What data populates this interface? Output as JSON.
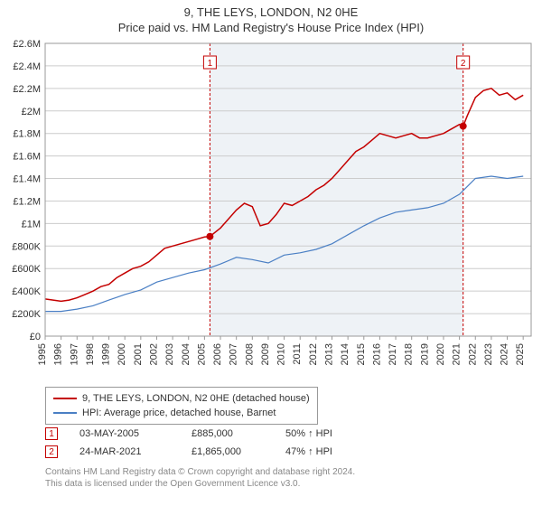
{
  "title_line1": "9, THE LEYS, LONDON, N2 0HE",
  "title_line2": "Price paid vs. HM Land Registry's House Price Index (HPI)",
  "chart": {
    "type": "line",
    "background_color": "#ffffff",
    "plot_border_color": "#999999",
    "grid_color": "#cccccc",
    "xlim": [
      1995,
      2025.5
    ],
    "ylim": [
      0,
      2600000
    ],
    "ytick_step": 200000,
    "ytick_labels": [
      "£0",
      "£200K",
      "£400K",
      "£600K",
      "£800K",
      "£1M",
      "£1.2M",
      "£1.4M",
      "£1.6M",
      "£1.8M",
      "£2M",
      "£2.2M",
      "£2.4M",
      "£2.6M"
    ],
    "xticks": [
      1995,
      1996,
      1997,
      1998,
      1999,
      2000,
      2001,
      2002,
      2003,
      2004,
      2005,
      2006,
      2007,
      2008,
      2009,
      2010,
      2011,
      2012,
      2013,
      2014,
      2015,
      2016,
      2017,
      2018,
      2019,
      2020,
      2021,
      2022,
      2023,
      2024,
      2025
    ],
    "xtick_rotation": -90,
    "label_fontsize": 11,
    "series": [
      {
        "name": "price_paid",
        "label": "9, THE LEYS, LONDON, N2 0HE (detached house)",
        "color": "#c40000",
        "line_width": 1.5,
        "x": [
          1995,
          1995.5,
          1996,
          1996.5,
          1997,
          1997.5,
          1998,
          1998.5,
          1999,
          1999.5,
          2000,
          2000.5,
          2001,
          2001.5,
          2002,
          2002.5,
          2003,
          2003.5,
          2004,
          2004.5,
          2005,
          2005.34,
          2006,
          2006.5,
          2007,
          2007.5,
          2008,
          2008.5,
          2009,
          2009.5,
          2010,
          2010.5,
          2011,
          2011.5,
          2012,
          2012.5,
          2013,
          2013.5,
          2014,
          2014.5,
          2015,
          2015.5,
          2016,
          2016.5,
          2017,
          2017.5,
          2018,
          2018.5,
          2019,
          2019.5,
          2020,
          2020.5,
          2021,
          2021.23,
          2021.5,
          2022,
          2022.5,
          2023,
          2023.5,
          2024,
          2024.5,
          2025
        ],
        "y": [
          330000,
          320000,
          310000,
          320000,
          340000,
          370000,
          400000,
          440000,
          460000,
          520000,
          560000,
          600000,
          620000,
          660000,
          720000,
          780000,
          800000,
          820000,
          840000,
          860000,
          880000,
          885000,
          960000,
          1040000,
          1120000,
          1180000,
          1150000,
          980000,
          1000000,
          1080000,
          1180000,
          1160000,
          1200000,
          1240000,
          1300000,
          1340000,
          1400000,
          1480000,
          1560000,
          1640000,
          1680000,
          1740000,
          1800000,
          1780000,
          1760000,
          1780000,
          1800000,
          1760000,
          1760000,
          1780000,
          1800000,
          1840000,
          1880000,
          1865000,
          1960000,
          2120000,
          2180000,
          2200000,
          2140000,
          2160000,
          2100000,
          2140000
        ]
      },
      {
        "name": "hpi",
        "label": "HPI: Average price, detached house, Barnet",
        "color": "#4a7fc4",
        "line_width": 1.2,
        "x": [
          1995,
          1996,
          1997,
          1998,
          1999,
          2000,
          2001,
          2002,
          2003,
          2004,
          2005,
          2006,
          2007,
          2008,
          2009,
          2010,
          2011,
          2012,
          2013,
          2014,
          2015,
          2016,
          2017,
          2018,
          2019,
          2020,
          2021,
          2022,
          2023,
          2024,
          2025
        ],
        "y": [
          220000,
          220000,
          240000,
          270000,
          320000,
          370000,
          410000,
          480000,
          520000,
          560000,
          590000,
          640000,
          700000,
          680000,
          650000,
          720000,
          740000,
          770000,
          820000,
          900000,
          980000,
          1050000,
          1100000,
          1120000,
          1140000,
          1180000,
          1260000,
          1400000,
          1420000,
          1400000,
          1420000
        ]
      }
    ],
    "sale_markers": {
      "color": "#c40000",
      "marker_radius": 4,
      "box_border": "#c40000",
      "vline_color": "#c40000",
      "vline_dash": "3,2",
      "band_color": "#eef2f6",
      "items": [
        {
          "n": "1",
          "x": 2005.34,
          "y": 885000
        },
        {
          "n": "2",
          "x": 2021.23,
          "y": 1865000
        }
      ]
    }
  },
  "legend": {
    "items": [
      {
        "color": "#c40000",
        "label": "9, THE LEYS, LONDON, N2 0HE (detached house)"
      },
      {
        "color": "#4a7fc4",
        "label": "HPI: Average price, detached house, Barnet"
      }
    ]
  },
  "sales": [
    {
      "n": "1",
      "date": "03-MAY-2005",
      "price": "£885,000",
      "pct": "50%",
      "arrow": "↑",
      "suffix": "HPI"
    },
    {
      "n": "2",
      "date": "24-MAR-2021",
      "price": "£1,865,000",
      "pct": "47%",
      "arrow": "↑",
      "suffix": "HPI"
    }
  ],
  "footer": {
    "line1": "Contains HM Land Registry data © Crown copyright and database right 2024.",
    "line2": "This data is licensed under the Open Government Licence v3.0."
  }
}
